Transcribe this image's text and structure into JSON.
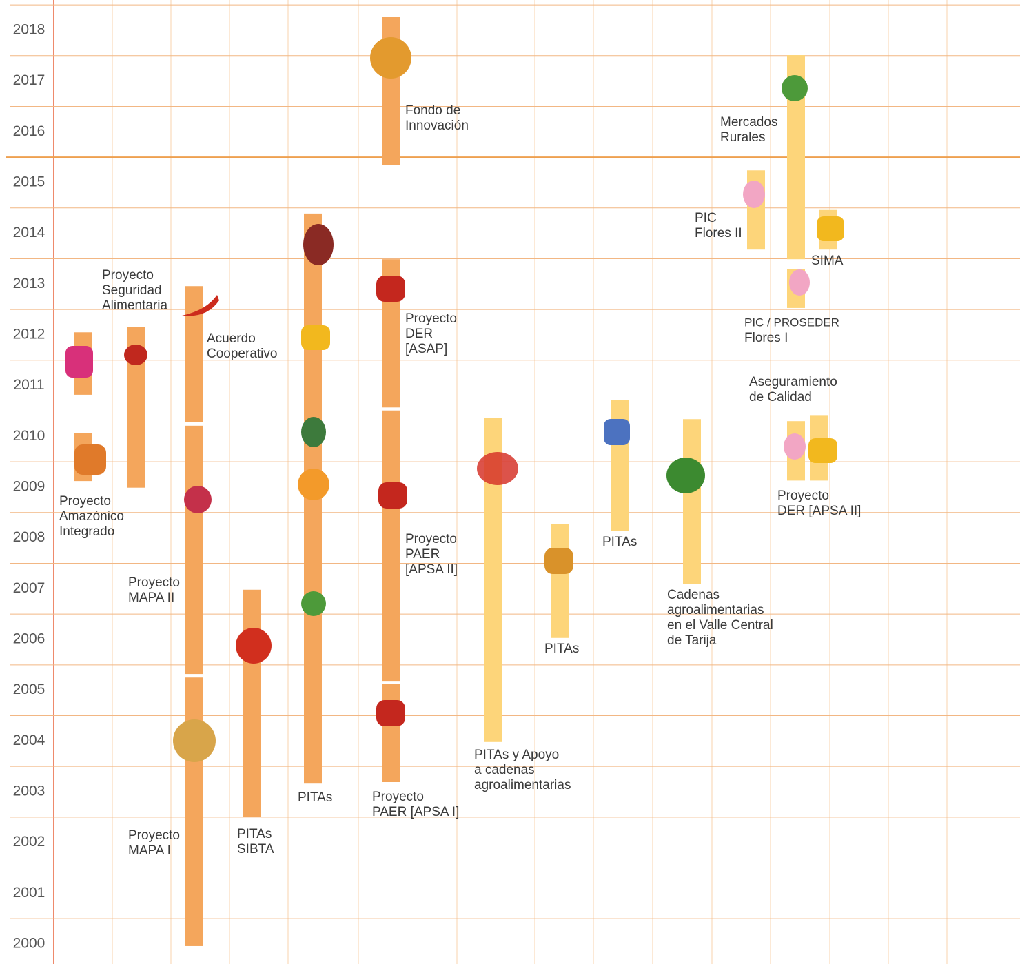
{
  "years": [
    2000,
    2001,
    2002,
    2003,
    2004,
    2005,
    2006,
    2007,
    2008,
    2009,
    2010,
    2011,
    2012,
    2013,
    2014,
    2015,
    2016,
    2017,
    2018
  ],
  "bars": [
    {
      "from": 2010.82,
      "to": 2012.05,
      "color": "#f4a65c"
    },
    {
      "from": 2009.12,
      "to": 2010.07,
      "color": "#f4a65c"
    },
    {
      "from": 2008.99,
      "to": 2012.16,
      "color": "#f4a65c"
    },
    {
      "from": 2010.28,
      "to": 2012.96,
      "color": "#f4a65c"
    },
    {
      "from": 2005.32,
      "to": 2010.21,
      "color": "#f4a65c"
    },
    {
      "from": 1999.96,
      "to": 2005.25,
      "color": "#f4a65c"
    },
    {
      "from": 2002.5,
      "to": 2006.98,
      "color": "#f4a65c"
    },
    {
      "from": 2003.16,
      "to": 2014.39,
      "color": "#f4a65c"
    },
    {
      "from": 2015.34,
      "to": 2018.26,
      "color": "#f4a65c"
    },
    {
      "from": 2010.57,
      "to": 2013.49,
      "color": "#f4a65c"
    },
    {
      "from": 2005.17,
      "to": 2010.51,
      "color": "#f4a65c"
    },
    {
      "from": 2003.19,
      "to": 2005.12,
      "color": "#f4a65c"
    },
    {
      "from": 2003.98,
      "to": 2010.37,
      "color": "#fdd57a"
    },
    {
      "from": 2006.03,
      "to": 2008.27,
      "color": "#fdd57a"
    },
    {
      "from": 2008.14,
      "to": 2010.72,
      "color": "#fdd57a"
    },
    {
      "from": 2007.09,
      "to": 2010.34,
      "color": "#fdd57a"
    },
    {
      "from": 2013.68,
      "to": 2015.24,
      "color": "#fdd57a"
    },
    {
      "from": 2013.49,
      "to": 2017.51,
      "color": "#fdd57a"
    },
    {
      "from": 2012.53,
      "to": 2013.3,
      "color": "#fdd57a"
    },
    {
      "from": 2013.68,
      "to": 2014.46,
      "color": "#fdd57a"
    },
    {
      "from": 2009.13,
      "to": 2010.3,
      "color": "#fdd57a"
    },
    {
      "from": 2009.13,
      "to": 2010.42,
      "color": "#fdd57a"
    }
  ],
  "labels": [
    [
      "Proyecto",
      "Amazónico",
      "Integrado"
    ],
    [
      "Proyecto",
      "Seguridad",
      "Alimentaria"
    ],
    [
      "Acuerdo",
      "Cooperativo"
    ],
    [
      "Proyecto",
      "MAPA II"
    ],
    [
      "Proyecto",
      "MAPA I"
    ],
    [
      "PITAs",
      "SIBTA"
    ],
    [
      "PITAs"
    ],
    [
      "Fondo de",
      "Innovación"
    ],
    [
      "Proyecto",
      "DER",
      "[ASAP]"
    ],
    [
      "Proyecto",
      "PAER",
      "[APSA II]"
    ],
    [
      "Proyecto",
      "PAER [APSA I]"
    ],
    [
      "PITAs y Apoyo",
      "a cadenas",
      "agroalimentarias"
    ],
    [
      "PITAs"
    ],
    [
      "PITAs"
    ],
    [
      "Cadenas",
      "agroalimentarias",
      "en el Valle Central",
      "de Tarija"
    ],
    [
      "Mercados",
      "Rurales"
    ],
    [
      "PIC",
      "Flores II"
    ],
    [
      "SIMA"
    ],
    [
      "PIC / PROSEDER",
      "Flores I"
    ],
    [
      "Aseguramiento",
      "de Calidad"
    ],
    [
      "Proyecto",
      "DER [APSA II]"
    ]
  ]
}
